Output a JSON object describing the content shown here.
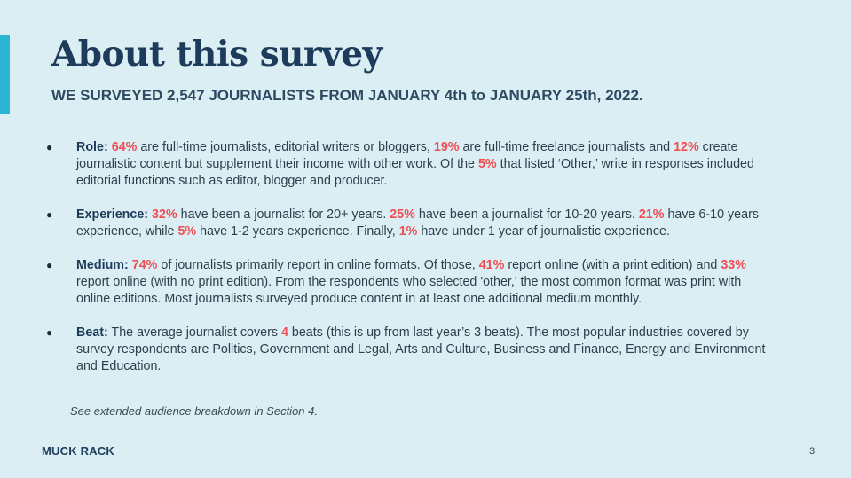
{
  "slide": {
    "title": "About this survey",
    "subtitle": "WE SURVEYED 2,547 JOURNALISTS FROM JANUARY 4th to JANUARY 25th, 2022.",
    "bullets": [
      {
        "label": "Role:",
        "parts": [
          {
            "hl": "64%"
          },
          {
            "t": " are full-time journalists, editorial writers or bloggers, "
          },
          {
            "hl": "19%"
          },
          {
            "t": " are full-time freelance journalists and "
          },
          {
            "hl": "12%"
          },
          {
            "t": " create journalistic content but supplement their income with other work. Of the "
          },
          {
            "hl": "5%"
          },
          {
            "t": " that listed ‘Other,’ write in responses included editorial functions such as editor, blogger and producer."
          }
        ]
      },
      {
        "label": "Experience:",
        "parts": [
          {
            "hl": "32%"
          },
          {
            "t": " have been a journalist for 20+ years. "
          },
          {
            "hl": "25%"
          },
          {
            "t": " have been a journalist for 10-20 years. "
          },
          {
            "hl": "21%"
          },
          {
            "t": " have 6-10 years experience, while "
          },
          {
            "hl": "5%"
          },
          {
            "t": " have 1-2 years experience. Finally, "
          },
          {
            "hl": "1%"
          },
          {
            "t": " have under 1 year of journalistic experience."
          }
        ]
      },
      {
        "label": "Medium:",
        "parts": [
          {
            "hl": "74%"
          },
          {
            "t": " of journalists primarily report in online formats. Of those, "
          },
          {
            "hl": "41%"
          },
          {
            "t": " report online (with a print edition) and "
          },
          {
            "hl": "33%"
          },
          {
            "t": " report online (with no print edition). From the respondents who selected 'other,' the most common format was print with online editions. Most journalists surveyed produce content in at least one additional medium monthly."
          }
        ]
      },
      {
        "label": "Beat:",
        "parts": [
          {
            "t": "The average journalist covers "
          },
          {
            "hl": "4"
          },
          {
            "t": " beats (this is up from last year’s 3 beats). The most popular industries covered by survey respondents are Politics, Government and Legal, Arts and Culture, Business and Finance, Energy and Environment and Education."
          }
        ]
      }
    ],
    "footnote": "See extended audience breakdown in Section 4.",
    "brand": "MUCK RACK",
    "page_number": "3"
  }
}
